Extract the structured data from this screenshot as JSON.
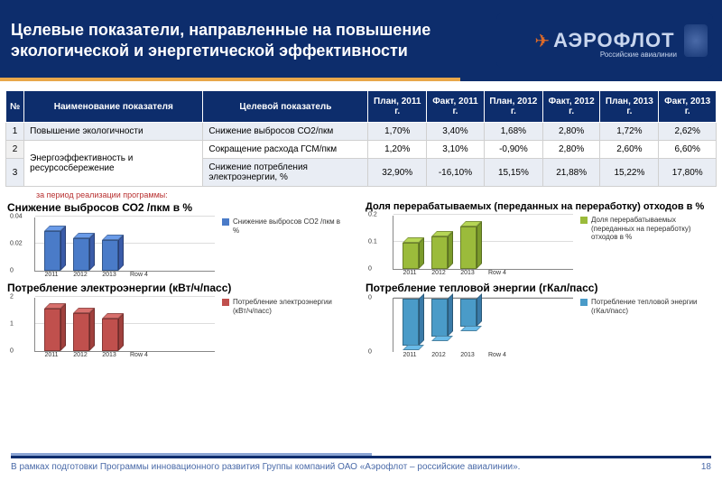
{
  "header": {
    "title": "Целевые показатели, направленные на повышение экологической и энергетической эффективности",
    "logo_text": "АЭРОФЛОТ",
    "logo_sub": "Российские авиалинии"
  },
  "table": {
    "headers": [
      "№",
      "Наименование показателя",
      "Целевой показатель",
      "План, 2011 г.",
      "Факт, 2011 г.",
      "План, 2012 г.",
      "Факт, 2012 г.",
      "План, 2013 г.",
      "Факт, 2013 г."
    ],
    "rows": [
      {
        "idx": "1",
        "name": "Повышение экологичности",
        "target": "Снижение выбросов СО2/пкм",
        "v": [
          "1,70%",
          "3,40%",
          "1,68%",
          "2,80%",
          "1,72%",
          "2,62%"
        ],
        "alt": true
      },
      {
        "idx": "2",
        "name": "",
        "target": "Сокращение расхода ГСМ/пкм",
        "v": [
          "1,20%",
          "3,10%",
          "-0,90%",
          "2,80%",
          "2,60%",
          "6,60%"
        ],
        "alt": false,
        "rowspan_name": "Энергоэффективность и ресурсосбережение"
      },
      {
        "idx": "3",
        "name": "",
        "target": "Снижение потребления электроэнергии, %",
        "v": [
          "32,90%",
          "-16,10%",
          "15,15%",
          "21,88%",
          "15,22%",
          "17,80%"
        ],
        "alt": true
      }
    ]
  },
  "note": "за период реализации программы:",
  "charts": {
    "co2": {
      "title": "Снижение выбросов СО2 /пкм в %",
      "type": "bar",
      "categories": [
        "2011",
        "2012",
        "2013",
        "Row 4"
      ],
      "values": [
        0.034,
        0.028,
        0.026,
        0
      ],
      "ymax": 0.04,
      "yticks": [
        "0",
        "0.02",
        "0.04"
      ],
      "bar_color": "#4a7bc8",
      "bar_color_top": "#6a9be8",
      "bar_color_side": "#3a5ba8",
      "legend": "Снижение выбросов СО2 /пкм в %"
    },
    "waste": {
      "title": "Доля перерабатываемых (переданных на переработку) отходов в %",
      "type": "bar",
      "categories": [
        "2011",
        "2012",
        "2013",
        "Row 4"
      ],
      "values": [
        0.11,
        0.14,
        0.18,
        0
      ],
      "ymax": 0.2,
      "yticks": [
        "0",
        "0.1",
        "0.2"
      ],
      "bar_color": "#9bbb3b",
      "bar_color_top": "#b5d555",
      "bar_color_side": "#7b9b2b",
      "legend": "Доля перерабатываемых (переданных на переработку) отходов в %"
    },
    "elec": {
      "title": "Потребление электроэнергии (кВт/ч/пасс)",
      "type": "bar",
      "categories": [
        "2011",
        "2012",
        "2013",
        "Row 4"
      ],
      "values": [
        1.8,
        1.6,
        1.4,
        0
      ],
      "ymax": 2,
      "yticks": [
        "0",
        "1",
        "2"
      ],
      "bar_color": "#c0504d",
      "bar_color_top": "#d8706d",
      "bar_color_side": "#a0403d",
      "legend": "Потребление электроэнергии (кВт/ч/пасс)"
    },
    "heat": {
      "title": "Потребление тепловой энергии (гКал/пасс)",
      "type": "bar",
      "categories": [
        "2011",
        "2012",
        "2013",
        "Row 4"
      ],
      "values": [
        -0.0005,
        -0.0004,
        -0.0003,
        0
      ],
      "ymax_top": 0,
      "ymin": -0.0006,
      "yticks": [
        "0",
        "0"
      ],
      "bar_color": "#4a9bc8",
      "bar_color_top": "#6abbe8",
      "bar_color_side": "#3a7ba8",
      "legend": "Потребление тепловой энергии (гКал/пасс)"
    }
  },
  "footer": {
    "text": "В рамках подготовки Программы инновационного развития Группы компаний ОАО «Аэрофлот – российские авиалинии».",
    "page": "18"
  },
  "colors": {
    "header_bg": "#0d2d6c",
    "accent_orange": "#e8a74a"
  }
}
